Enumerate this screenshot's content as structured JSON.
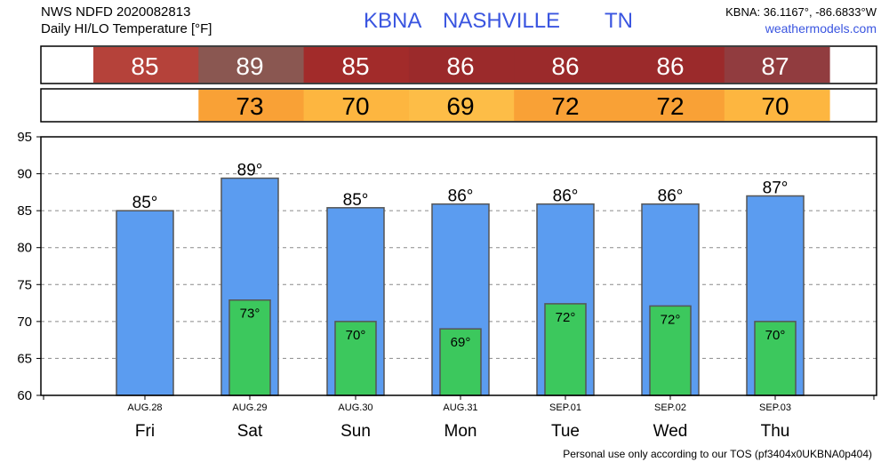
{
  "header": {
    "product_line1": "NWS NDFD 2020082813",
    "product_line2": "Daily HI/LO Temperature [°F]",
    "station_id": "KBNA",
    "station_name": "NASHVILLE",
    "state": "TN",
    "coords": "KBNA: 36.1167°, -86.6833°W",
    "site": "weathermodels.com"
  },
  "footer": {
    "tos": "Personal use only according to our TOS (pf3404x0UKBNA0p404)"
  },
  "colors": {
    "hi_bar": "#5b9cf0",
    "lo_bar": "#3cc85d",
    "bar_stroke": "#555555",
    "title_blue": "#3a55e0",
    "hi_strip": [
      "#b5423a",
      "#8a5751",
      "#a22b2a",
      "#9b2a2b",
      "#9b2a2b",
      "#9b2a2b",
      "#913c3f"
    ],
    "lo_strip": [
      "#f9a136",
      "#fdb640",
      "#fdbd47",
      "#f9a136",
      "#f9a136",
      "#fdb640"
    ]
  },
  "chart_data": {
    "type": "bar",
    "categories": [
      "AUG.28",
      "AUG.29",
      "AUG.30",
      "AUG.31",
      "SEP.01",
      "SEP.02",
      "SEP.03"
    ],
    "days": [
      "Fri",
      "Sat",
      "Sun",
      "Mon",
      "Tue",
      "Wed",
      "Thu"
    ],
    "series": [
      {
        "values": [
          85,
          89.4,
          85.4,
          85.9,
          85.9,
          85.9,
          87.0
        ],
        "labels": [
          "85°",
          "89°",
          "85°",
          "86°",
          "86°",
          "86°",
          "87°"
        ]
      },
      {
        "values": [
          null,
          72.9,
          70.0,
          69.0,
          72.4,
          72.1,
          70.0
        ],
        "labels": [
          "",
          "73°",
          "70°",
          "69°",
          "72°",
          "72°",
          "70°"
        ]
      }
    ],
    "hi_strip": [
      "85",
      "89",
      "85",
      "86",
      "86",
      "86",
      "87"
    ],
    "lo_strip": [
      "",
      "73",
      "70",
      "69",
      "72",
      "72",
      "70"
    ],
    "yticks": [
      "95",
      "90",
      "85",
      "80",
      "75",
      "70",
      "65",
      "60"
    ],
    "ylim": [
      60,
      95
    ],
    "grid": true,
    "xlabel": "",
    "ylabel": ""
  }
}
